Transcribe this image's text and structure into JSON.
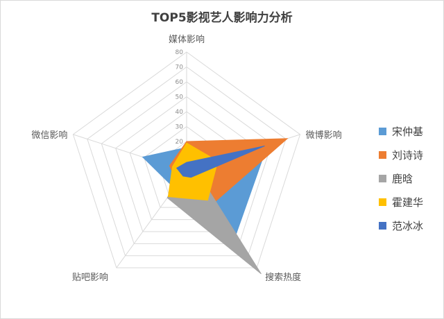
{
  "chart_data": {
    "type": "radar",
    "title": "TOP5影视艺人影响力分析",
    "axes": [
      "媒体影响",
      "微博影响",
      "搜索热度",
      "贴吧影响",
      "微信影响"
    ],
    "r_ticks": [
      "0",
      "10",
      "20",
      "30",
      "40",
      "50",
      "60",
      "70",
      "80"
    ],
    "rlim": [
      0,
      80
    ],
    "grid": true,
    "legend_position": "right",
    "series": [
      {
        "name": "宋仲基",
        "color": "#5b9bd5",
        "values": [
          16,
          57,
          55,
          14,
          31
        ]
      },
      {
        "name": "刘诗诗",
        "color": "#ed7d31",
        "values": [
          20,
          71,
          28,
          10,
          12
        ]
      },
      {
        "name": "鹿晗",
        "color": "#a5a5a5",
        "values": [
          5,
          6,
          85,
          22,
          4
        ]
      },
      {
        "name": "霍建华",
        "color": "#ffc000",
        "values": [
          19,
          22,
          24,
          21,
          10
        ]
      },
      {
        "name": "范冰冰",
        "color": "#4472c4",
        "values": [
          6,
          55,
          5,
          4,
          7
        ]
      }
    ]
  }
}
